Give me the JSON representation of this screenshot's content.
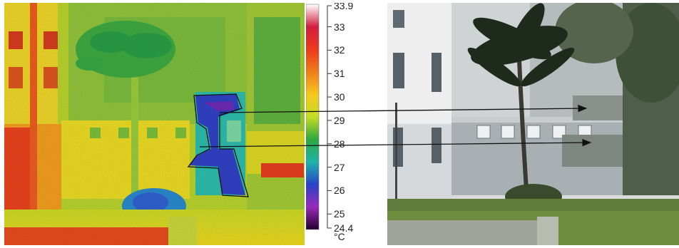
{
  "colorbar": {
    "ticks": [
      {
        "label": "33.9",
        "value": 33.9
      },
      {
        "label": "33",
        "value": 33
      },
      {
        "label": "32",
        "value": 32
      },
      {
        "label": "31",
        "value": 31
      },
      {
        "label": "30",
        "value": 30
      },
      {
        "label": "29",
        "value": 29
      },
      {
        "label": "28",
        "value": 28
      },
      {
        "label": "27",
        "value": 27
      },
      {
        "label": "26",
        "value": 26
      },
      {
        "label": "25",
        "value": 25
      },
      {
        "label": "24.4",
        "value": 24.4
      }
    ],
    "unit": "°C",
    "max": 33.9,
    "min": 24.4,
    "colors": [
      "#ffffff",
      "#d21e3c",
      "#ec3a1e",
      "#f07c1a",
      "#f6c81e",
      "#c6dc23",
      "#2fa840",
      "#1eb4a8",
      "#2844c8",
      "#9a2ab8",
      "#240030"
    ]
  }
}
